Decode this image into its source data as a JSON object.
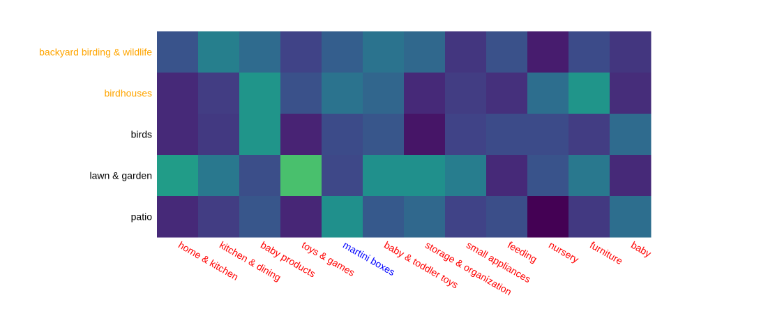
{
  "chart_data": {
    "type": "heatmap",
    "x_categories": [
      "home & kitchen",
      "kitchen & dining",
      "baby products",
      "toys & games",
      "martini boxes",
      "baby & toddler toys",
      "storage & organization",
      "small appliances",
      "feeding",
      "nursery",
      "furniture",
      "baby"
    ],
    "x_label_colors": [
      "#ff0000",
      "#ff0000",
      "#ff0000",
      "#ff0000",
      "#0000ff",
      "#ff0000",
      "#ff0000",
      "#ff0000",
      "#ff0000",
      "#ff0000",
      "#ff0000",
      "#ff0000"
    ],
    "y_categories": [
      "backyard birding & wildlife",
      "birdhouses",
      "birds",
      "lawn & garden",
      "patio"
    ],
    "y_label_colors": [
      "#ffa500",
      "#ffa500",
      "#000000",
      "#000000",
      "#000000"
    ],
    "values": [
      [
        0.26,
        0.43,
        0.35,
        0.2,
        0.3,
        0.38,
        0.34,
        0.16,
        0.25,
        0.08,
        0.23,
        0.16
      ],
      [
        0.12,
        0.18,
        0.52,
        0.25,
        0.38,
        0.33,
        0.12,
        0.18,
        0.14,
        0.36,
        0.52,
        0.13
      ],
      [
        0.12,
        0.17,
        0.52,
        0.1,
        0.23,
        0.27,
        0.06,
        0.2,
        0.23,
        0.23,
        0.18,
        0.35
      ],
      [
        0.55,
        0.4,
        0.24,
        0.71,
        0.22,
        0.5,
        0.5,
        0.42,
        0.12,
        0.26,
        0.4,
        0.12
      ],
      [
        0.12,
        0.18,
        0.27,
        0.11,
        0.5,
        0.28,
        0.34,
        0.2,
        0.24,
        0.0,
        0.17,
        0.36
      ]
    ],
    "colorscale": "viridis",
    "zlim": [
      0,
      1
    ]
  }
}
